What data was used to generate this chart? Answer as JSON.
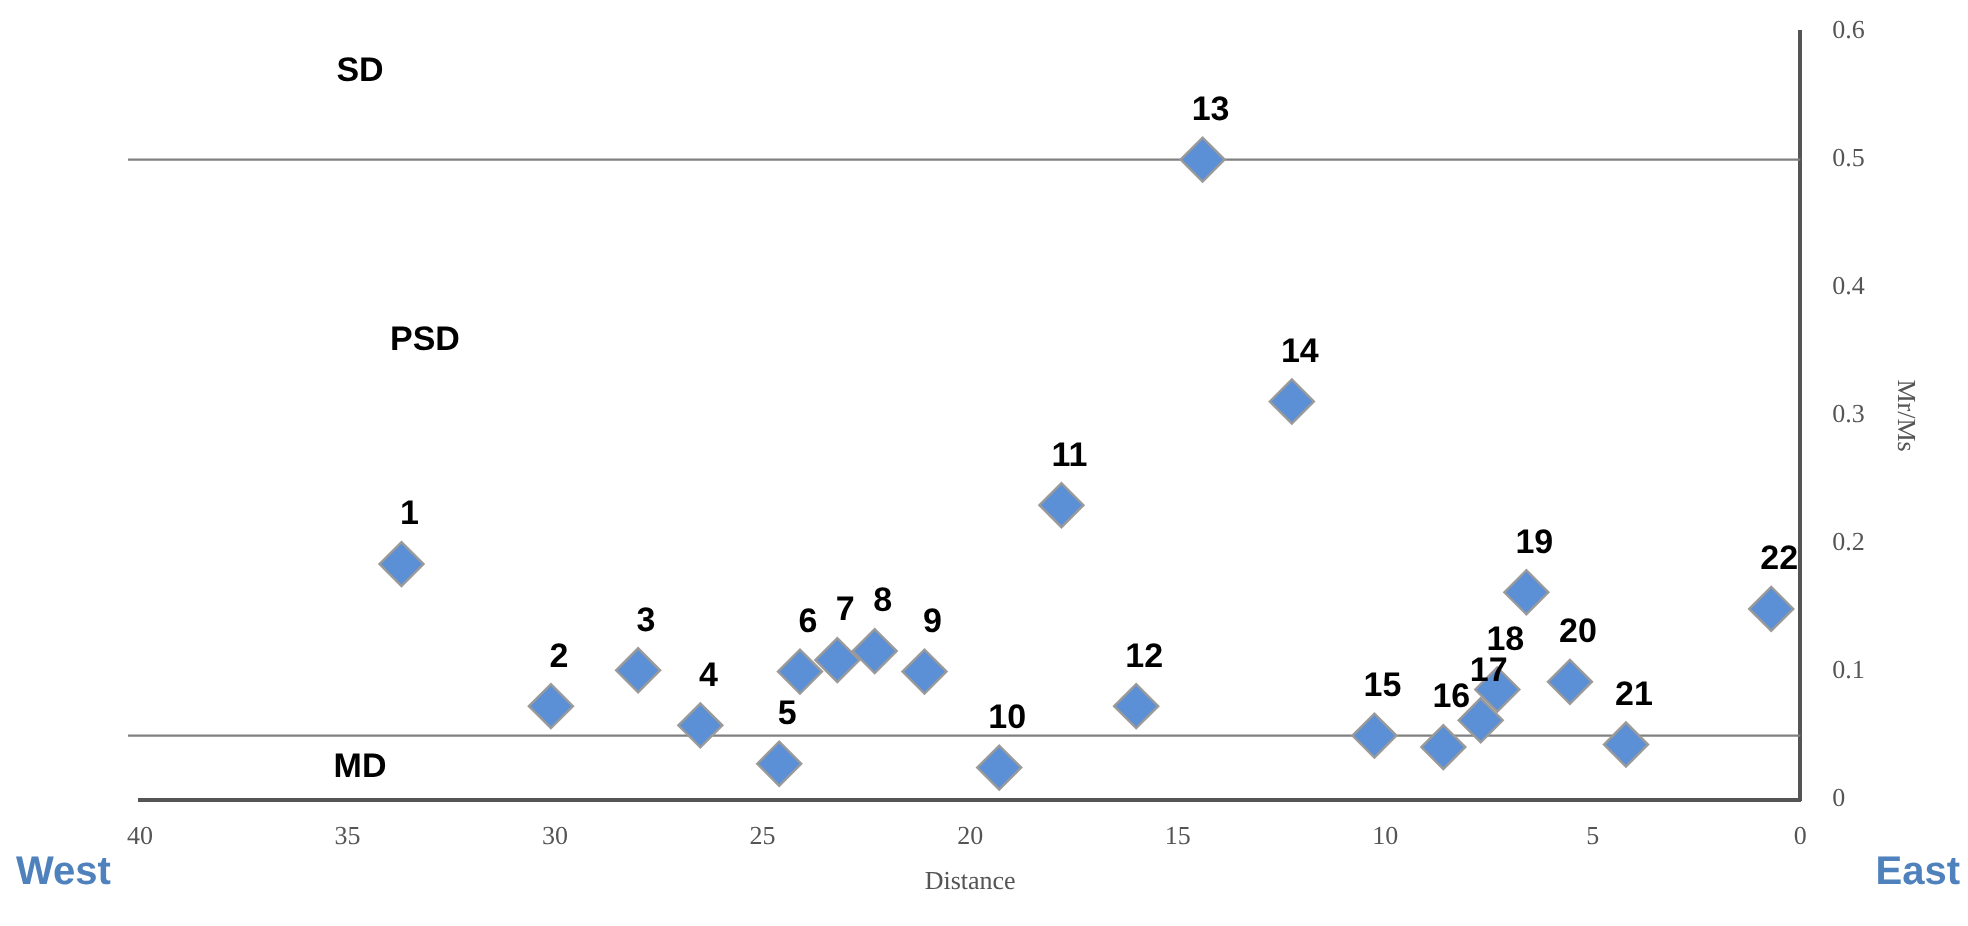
{
  "chart_data": {
    "type": "scatter",
    "xlabel": "Distance",
    "ylabel": "Mr/Ms",
    "x": [
      33.7,
      30.1,
      28.0,
      26.5,
      24.6,
      24.1,
      23.2,
      22.3,
      21.1,
      19.3,
      17.8,
      16.0,
      14.4,
      12.25,
      10.26,
      8.6,
      7.7,
      7.3,
      6.6,
      5.55,
      4.2,
      0.7
    ],
    "values": [
      0.184,
      0.073,
      0.101,
      0.058,
      0.028,
      0.1,
      0.109,
      0.116,
      0.1,
      0.025,
      0.23,
      0.073,
      0.5,
      0.311,
      0.05,
      0.041,
      0.062,
      0.086,
      0.162,
      0.092,
      0.043,
      0.149
    ],
    "color": "#5b8fd6",
    "marker": "diamond",
    "xlim": [
      40,
      0
    ],
    "xticks": [
      40,
      35,
      30,
      25,
      20,
      15,
      10,
      5,
      0
    ],
    "ylim": [
      0,
      0.6
    ],
    "yticks": [
      0,
      0.1,
      0.2,
      0.3,
      0.4,
      0.5,
      0.6
    ],
    "grid": false,
    "legend": false,
    "ref_lines": [
      {
        "axis": "y",
        "value": 0.5,
        "color": "#808080",
        "label": "SD"
      },
      {
        "axis": "y",
        "value": 0.05,
        "color": "#808080",
        "label": "MD"
      }
    ],
    "annotations": [
      "PSD",
      {
        "text": "1",
        "x": 33.7,
        "y": 0.184
      },
      {
        "text": "2",
        "x": 30.1,
        "y": 0.073
      },
      {
        "text": "3",
        "x": 28.0,
        "y": 0.101
      },
      {
        "text": "4",
        "x": 26.5,
        "y": 0.058
      },
      {
        "text": "5",
        "x": 24.6,
        "y": 0.028
      },
      {
        "text": "6",
        "x": 24.1,
        "y": 0.1
      },
      {
        "text": "7",
        "x": 23.2,
        "y": 0.109
      },
      {
        "text": "8",
        "x": 22.3,
        "y": 0.116
      },
      {
        "text": "9",
        "x": 21.1,
        "y": 0.1
      },
      {
        "text": "10",
        "x": 19.3,
        "y": 0.025
      },
      {
        "text": "11",
        "x": 17.8,
        "y": 0.23
      },
      {
        "text": "12",
        "x": 16.0,
        "y": 0.073
      },
      {
        "text": "13",
        "x": 14.4,
        "y": 0.5
      },
      {
        "text": "14",
        "x": 12.25,
        "y": 0.311
      },
      {
        "text": "15",
        "x": 10.26,
        "y": 0.05
      },
      {
        "text": "16",
        "x": 8.6,
        "y": 0.041
      },
      {
        "text": "17",
        "x": 7.7,
        "y": 0.062
      },
      {
        "text": "18",
        "x": 7.3,
        "y": 0.086
      },
      {
        "text": "19",
        "x": 6.6,
        "y": 0.162
      },
      {
        "text": "20",
        "x": 5.55,
        "y": 0.092
      },
      {
        "text": "21",
        "x": 4.2,
        "y": 0.043
      },
      {
        "text": "22",
        "x": 0.7,
        "y": 0.149
      },
      "West",
      "East"
    ]
  }
}
